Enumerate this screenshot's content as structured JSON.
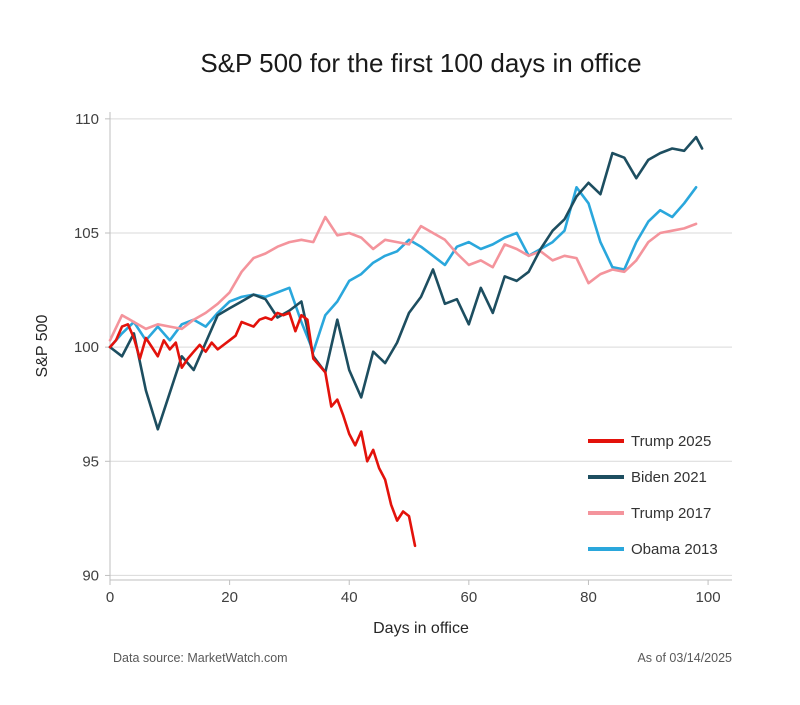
{
  "footer": {
    "left": "Data source: MarketWatch.com",
    "right": "As of 03/14/2025"
  },
  "chart_data": {
    "type": "line",
    "title": "S&P 500 for the first 100 days in office",
    "xlabel": "Days in office",
    "ylabel": "S&P 500",
    "xlim": [
      0,
      104
    ],
    "ylim": [
      89.8,
      110.3
    ],
    "xticks": [
      0,
      20,
      40,
      60,
      80,
      100
    ],
    "yticks": [
      90,
      95,
      100,
      105,
      110
    ],
    "grid": "horizontal",
    "legend_position": "inside-right-bottom",
    "series": [
      {
        "name": "Trump 2025",
        "color": "#e3120b",
        "x": [
          0,
          1,
          2,
          3,
          4,
          5,
          6,
          7,
          8,
          9,
          10,
          11,
          12,
          13,
          14,
          15,
          16,
          17,
          18,
          19,
          20,
          21,
          22,
          23,
          24,
          25,
          26,
          27,
          28,
          29,
          30,
          31,
          32,
          33,
          34,
          35,
          36,
          37,
          38,
          39,
          40,
          41,
          42,
          43,
          44,
          45,
          46,
          47,
          48,
          49,
          50,
          51
        ],
        "y": [
          100.0,
          100.3,
          100.9,
          101.0,
          100.4,
          99.5,
          100.4,
          100.0,
          99.6,
          100.3,
          99.9,
          100.2,
          99.1,
          99.5,
          99.8,
          100.1,
          99.8,
          100.2,
          99.9,
          100.1,
          100.3,
          100.5,
          101.1,
          101.0,
          100.9,
          101.2,
          101.3,
          101.2,
          101.5,
          101.4,
          101.5,
          100.7,
          101.4,
          101.2,
          99.5,
          99.2,
          98.9,
          97.4,
          97.7,
          97.0,
          96.2,
          95.7,
          96.3,
          95.0,
          95.5,
          94.7,
          94.2,
          93.1,
          92.4,
          92.8,
          92.6,
          91.3
        ]
      },
      {
        "name": "Biden 2021",
        "color": "#1d4e60",
        "x": [
          0,
          2,
          4,
          6,
          8,
          10,
          12,
          14,
          16,
          18,
          20,
          22,
          24,
          26,
          28,
          30,
          32,
          34,
          36,
          38,
          40,
          42,
          44,
          46,
          48,
          50,
          52,
          54,
          56,
          58,
          60,
          62,
          64,
          66,
          68,
          70,
          72,
          74,
          76,
          78,
          80,
          82,
          84,
          86,
          88,
          90,
          92,
          94,
          96,
          98,
          99
        ],
        "y": [
          100.0,
          99.6,
          100.6,
          98.1,
          96.4,
          98.0,
          99.6,
          99.0,
          100.2,
          101.4,
          101.7,
          102.0,
          102.3,
          102.1,
          101.3,
          101.6,
          102.0,
          99.6,
          98.9,
          101.2,
          99.0,
          97.8,
          99.8,
          99.3,
          100.2,
          101.5,
          102.2,
          103.4,
          101.9,
          102.1,
          101.0,
          102.6,
          101.5,
          103.1,
          102.9,
          103.3,
          104.3,
          105.1,
          105.6,
          106.6,
          107.2,
          106.7,
          108.5,
          108.3,
          107.4,
          108.2,
          108.5,
          108.7,
          108.6,
          109.2,
          108.7
        ]
      },
      {
        "name": "Trump 2017",
        "color": "#f4949c",
        "x": [
          0,
          2,
          4,
          6,
          8,
          10,
          12,
          14,
          16,
          18,
          20,
          22,
          24,
          26,
          28,
          30,
          32,
          34,
          36,
          38,
          40,
          42,
          44,
          46,
          48,
          50,
          52,
          54,
          56,
          58,
          60,
          62,
          64,
          66,
          68,
          70,
          72,
          74,
          76,
          78,
          80,
          82,
          84,
          86,
          88,
          90,
          92,
          94,
          96,
          98
        ],
        "y": [
          100.3,
          101.4,
          101.1,
          100.8,
          101.0,
          100.9,
          100.8,
          101.2,
          101.5,
          101.9,
          102.4,
          103.3,
          103.9,
          104.1,
          104.4,
          104.6,
          104.7,
          104.6,
          105.7,
          104.9,
          105.0,
          104.8,
          104.3,
          104.7,
          104.6,
          104.5,
          105.3,
          105.0,
          104.7,
          104.1,
          103.6,
          103.8,
          103.5,
          104.5,
          104.3,
          104.0,
          104.2,
          103.8,
          104.0,
          103.9,
          102.8,
          103.2,
          103.4,
          103.3,
          103.8,
          104.6,
          105.0,
          105.1,
          105.2,
          105.4
        ]
      },
      {
        "name": "Obama 2013",
        "color": "#2aa7dc",
        "x": [
          0,
          2,
          4,
          6,
          8,
          10,
          12,
          14,
          16,
          18,
          20,
          22,
          24,
          26,
          28,
          30,
          32,
          34,
          36,
          38,
          40,
          42,
          44,
          46,
          48,
          50,
          52,
          54,
          56,
          58,
          60,
          62,
          64,
          66,
          68,
          70,
          72,
          74,
          76,
          78,
          80,
          82,
          84,
          86,
          88,
          90,
          92,
          94,
          96,
          98
        ],
        "y": [
          100.0,
          100.6,
          101.1,
          100.3,
          100.9,
          100.3,
          101.0,
          101.2,
          100.9,
          101.5,
          102.0,
          102.2,
          102.3,
          102.2,
          102.4,
          102.6,
          101.1,
          99.8,
          101.4,
          102.0,
          102.9,
          103.2,
          103.7,
          104.0,
          104.2,
          104.7,
          104.4,
          104.0,
          103.6,
          104.4,
          104.6,
          104.3,
          104.5,
          104.8,
          105.0,
          104.0,
          104.3,
          104.6,
          105.1,
          107.0,
          106.3,
          104.6,
          103.5,
          103.4,
          104.6,
          105.5,
          106.0,
          105.7,
          106.3,
          107.0
        ]
      }
    ]
  }
}
